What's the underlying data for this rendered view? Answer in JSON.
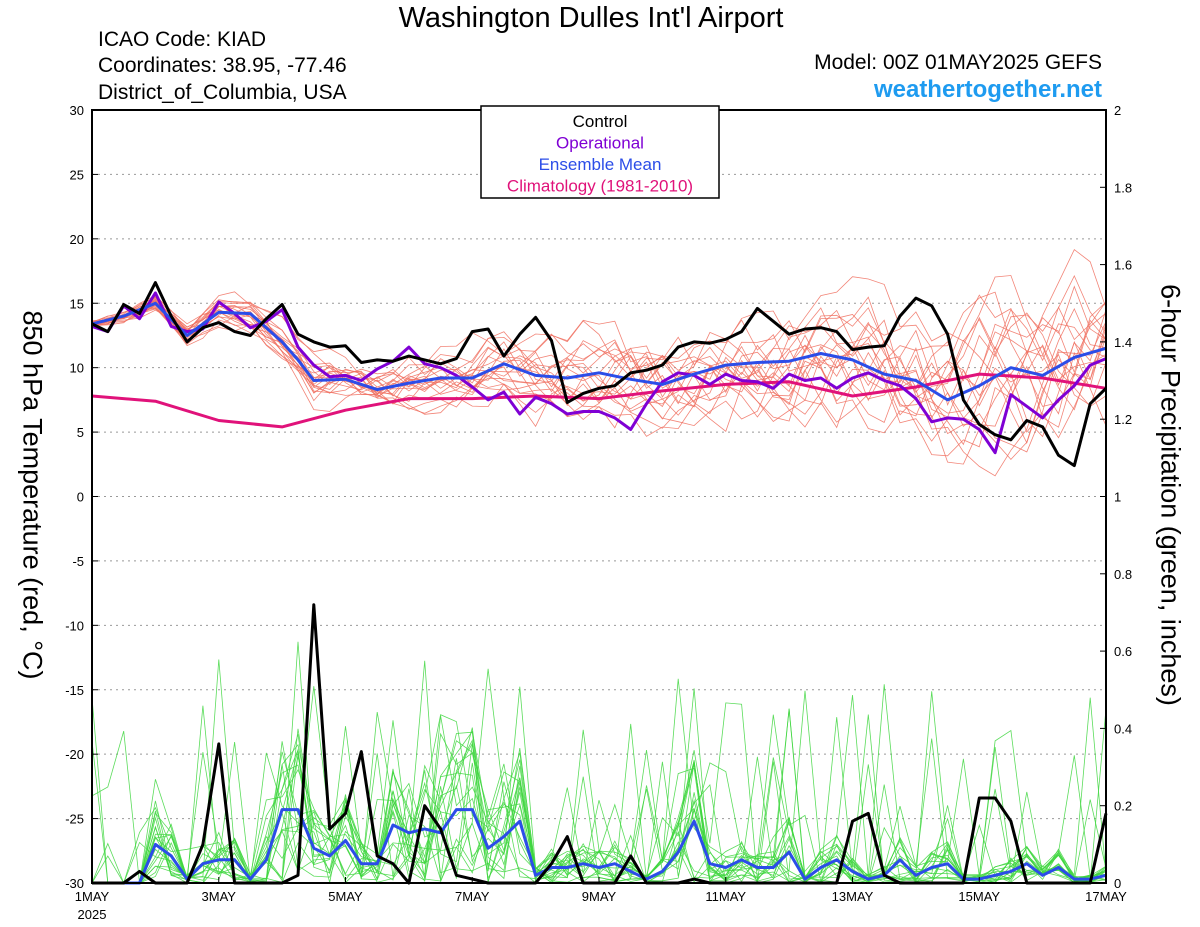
{
  "header": {
    "title": "Washington Dulles Int'l Airport",
    "icao": "ICAO Code: KIAD",
    "coords": "Coordinates: 38.95, -77.46",
    "region": "District_of_Columbia, USA",
    "model": "Model: 00Z 01MAY2025 GEFS",
    "site": "weathertogether.net"
  },
  "colors": {
    "control": "#000000",
    "operational": "#7f00d4",
    "mean": "#2b4de8",
    "climatology": "#e0127a",
    "members_temp": "#f07060",
    "members_precip": "#3ed63e"
  },
  "chart_data": {
    "type": "line",
    "xlabel": "",
    "ylabel_left": "850 hPa Temperature (red, °C)",
    "ylabel_right": "6-hour Precipitation (green, inches)",
    "x_unit": "days since 1MAY 00Z",
    "xlim": [
      0,
      16
    ],
    "ylim_left": [
      -30,
      30
    ],
    "ylim_right": [
      0,
      2
    ],
    "grid": "horizontal dotted",
    "yticks_left": [
      "30",
      "25",
      "20",
      "15",
      "10",
      "5",
      "0",
      "-5",
      "-10",
      "-15",
      "-20",
      "-25",
      "-30"
    ],
    "yticks_right": [
      "2",
      "1.8",
      "1.6",
      "1.4",
      "1.2",
      "1",
      "0.8",
      "0.6",
      "0.4",
      "0.2",
      "0"
    ],
    "xticks": [
      {
        "x": 0,
        "label": "1MAY"
      },
      {
        "x": 2,
        "label": "3MAY"
      },
      {
        "x": 4,
        "label": "5MAY"
      },
      {
        "x": 6,
        "label": "7MAY"
      },
      {
        "x": 8,
        "label": "9MAY"
      },
      {
        "x": 10,
        "label": "11MAY"
      },
      {
        "x": 12,
        "label": "13MAY"
      },
      {
        "x": 14,
        "label": "15MAY"
      },
      {
        "x": 16,
        "label": "17MAY"
      }
    ],
    "year_label": "2025",
    "legend": {
      "position": "top-center",
      "entries": [
        {
          "name": "Control",
          "color": "#000000"
        },
        {
          "name": "Operational",
          "color": "#7f00d4"
        },
        {
          "name": "Ensemble Mean",
          "color": "#2b4de8"
        },
        {
          "name": "Climatology (1981-2010)",
          "color": "#e0127a"
        }
      ]
    },
    "series": [
      {
        "name": "Climatology (1981-2010)",
        "axis": "left",
        "x": [
          0,
          1,
          2,
          3,
          4,
          5,
          6,
          7,
          8,
          9,
          10,
          11,
          12,
          13,
          14,
          15,
          16
        ],
        "values": [
          7.8,
          7.4,
          5.9,
          5.4,
          6.7,
          7.6,
          7.6,
          7.8,
          7.6,
          8.2,
          8.7,
          8.9,
          7.8,
          8.5,
          9.5,
          9.2,
          8.4
        ]
      },
      {
        "name": "Control",
        "axis": "left",
        "x": [
          0,
          0.25,
          0.5,
          0.75,
          1,
          1.25,
          1.5,
          1.75,
          2,
          2.25,
          2.5,
          2.75,
          3,
          3.25,
          3.5,
          3.75,
          4,
          4.25,
          4.5,
          4.75,
          5,
          5.25,
          5.5,
          5.75,
          6,
          6.25,
          6.5,
          6.75,
          7,
          7.25,
          7.5,
          7.75,
          8,
          8.25,
          8.5,
          8.75,
          9,
          9.25,
          9.5,
          9.75,
          10,
          10.25,
          10.5,
          10.75,
          11,
          11.25,
          11.5,
          11.75,
          12,
          12.25,
          12.5,
          12.75,
          13,
          13.25,
          13.5,
          13.75,
          14,
          14.25,
          14.5,
          14.75,
          15,
          15.25,
          15.5,
          15.75,
          16
        ],
        "values": [
          13.4,
          12.8,
          14.9,
          14.2,
          16.6,
          14.0,
          12.0,
          13.1,
          13.5,
          12.8,
          12.5,
          13.8,
          14.9,
          12.6,
          12.0,
          11.6,
          11.7,
          10.4,
          10.6,
          10.5,
          10.9,
          10.6,
          10.3,
          10.7,
          12.8,
          13.0,
          10.9,
          12.6,
          13.9,
          12.1,
          7.3,
          8.0,
          8.4,
          8.6,
          9.6,
          9.8,
          10.2,
          11.6,
          12.0,
          11.9,
          12.2,
          12.8,
          14.6,
          13.6,
          12.6,
          13.0,
          13.1,
          12.8,
          11.4,
          11.6,
          11.7,
          14.0,
          15.4,
          14.8,
          12.6,
          7.5,
          5.6,
          4.8,
          4.4,
          5.9,
          5.4,
          3.2,
          2.4,
          7.2,
          8.4
        ]
      },
      {
        "name": "Operational",
        "axis": "left",
        "x": [
          0,
          0.25,
          0.5,
          0.75,
          1,
          1.25,
          1.5,
          1.75,
          2,
          2.25,
          2.5,
          2.75,
          3,
          3.25,
          3.5,
          3.75,
          4,
          4.25,
          4.5,
          4.75,
          5,
          5.25,
          5.5,
          5.75,
          6,
          6.25,
          6.5,
          6.75,
          7,
          7.25,
          7.5,
          7.75,
          8,
          8.25,
          8.5,
          8.75,
          9,
          9.25,
          9.5,
          9.75,
          10,
          10.25,
          10.5,
          10.75,
          11,
          11.25,
          11.5,
          11.75,
          12,
          12.25,
          12.5,
          12.75,
          13,
          13.25,
          13.5,
          13.75,
          14,
          14.25,
          14.5,
          14.75,
          15,
          15.25,
          15.5,
          15.75,
          16
        ],
        "values": [
          13.2,
          12.8,
          14.8,
          13.8,
          15.8,
          13.2,
          12.8,
          13.0,
          15.1,
          14.2,
          13.1,
          13.6,
          14.5,
          11.6,
          10.2,
          9.3,
          9.4,
          9.0,
          9.9,
          10.5,
          11.6,
          10.3,
          10.0,
          9.4,
          8.5,
          7.5,
          8.1,
          6.4,
          7.7,
          7.2,
          6.4,
          6.6,
          6.6,
          6.1,
          5.2,
          7.2,
          8.9,
          9.6,
          9.4,
          8.7,
          9.5,
          9.0,
          8.9,
          8.4,
          9.5,
          9.0,
          9.2,
          8.4,
          9.2,
          9.6,
          9.0,
          8.6,
          7.6,
          5.8,
          6.1,
          6.0,
          5.2,
          3.4,
          7.9,
          7.0,
          6.1,
          7.5,
          8.6,
          10.2,
          10.7
        ]
      },
      {
        "name": "Ensemble Mean",
        "axis": "left",
        "x": [
          0,
          0.5,
          1,
          1.5,
          2,
          2.5,
          3,
          3.25,
          3.5,
          4,
          4.5,
          5,
          5.5,
          6,
          6.5,
          7,
          7.5,
          8,
          8.5,
          9,
          9.5,
          10,
          10.5,
          11,
          11.5,
          12,
          12.5,
          13,
          13.5,
          14,
          14.5,
          15,
          15.5,
          16
        ],
        "values": [
          13.4,
          14.0,
          15.0,
          12.5,
          14.3,
          14.2,
          12.0,
          10.6,
          9.0,
          9.1,
          8.3,
          8.8,
          9.2,
          9.2,
          10.3,
          9.4,
          9.2,
          9.6,
          9.1,
          8.7,
          9.5,
          10.2,
          10.4,
          10.5,
          11.1,
          10.6,
          9.5,
          9.0,
          7.5,
          8.6,
          10.0,
          9.4,
          10.8,
          11.5
        ]
      },
      {
        "name": "Control",
        "axis": "right",
        "x": [
          0,
          0.25,
          0.5,
          0.75,
          1,
          1.25,
          1.5,
          1.75,
          2,
          2.25,
          2.5,
          2.75,
          3,
          3.25,
          3.5,
          3.75,
          4,
          4.25,
          4.5,
          4.75,
          5,
          5.25,
          5.5,
          5.75,
          6,
          6.25,
          6.5,
          6.75,
          7,
          7.25,
          7.5,
          7.75,
          8,
          8.25,
          8.5,
          8.75,
          9,
          9.25,
          9.5,
          9.75,
          10,
          10.25,
          10.5,
          10.75,
          11,
          11.25,
          11.5,
          11.75,
          12,
          12.25,
          12.5,
          12.75,
          13,
          13.25,
          13.5,
          13.75,
          14,
          14.25,
          14.5,
          14.75,
          15,
          15.25,
          15.5,
          15.75,
          16
        ],
        "values": [
          0.0,
          0.0,
          0.0,
          0.03,
          0.0,
          0.0,
          0.0,
          0.1,
          0.36,
          0.0,
          0.0,
          0.0,
          0.0,
          0.02,
          0.72,
          0.14,
          0.18,
          0.34,
          0.07,
          0.05,
          0.0,
          0.2,
          0.14,
          0.02,
          0.01,
          0.0,
          0.0,
          0.0,
          0.0,
          0.05,
          0.12,
          0.0,
          0.0,
          0.0,
          0.07,
          0.0,
          0.0,
          0.0,
          0.01,
          0.0,
          0.0,
          0.0,
          0.0,
          0.0,
          0.0,
          0.0,
          0.0,
          0.0,
          0.16,
          0.18,
          0.02,
          0.0,
          0.0,
          0.0,
          0.0,
          0.0,
          0.22,
          0.22,
          0.16,
          0.0,
          0.0,
          0.0,
          0.0,
          0.0,
          0.18
        ]
      },
      {
        "name": "Ensemble Mean",
        "axis": "right",
        "x": [
          0,
          0.25,
          0.5,
          0.75,
          1,
          1.25,
          1.5,
          1.75,
          2,
          2.25,
          2.5,
          2.75,
          3,
          3.25,
          3.5,
          3.75,
          4,
          4.25,
          4.5,
          4.75,
          5,
          5.25,
          5.5,
          5.75,
          6,
          6.25,
          6.5,
          6.75,
          7,
          7.25,
          7.5,
          7.75,
          8,
          8.25,
          8.5,
          8.75,
          9,
          9.25,
          9.5,
          9.75,
          10,
          10.25,
          10.5,
          10.75,
          11,
          11.25,
          11.5,
          11.75,
          12,
          12.25,
          12.5,
          12.75,
          13,
          13.25,
          13.5,
          13.75,
          14,
          14.25,
          14.5,
          14.75,
          15,
          15.25,
          15.5,
          15.75,
          16
        ],
        "values": [
          0.0,
          0.0,
          0.0,
          0.0,
          0.1,
          0.07,
          0.01,
          0.05,
          0.06,
          0.06,
          0.01,
          0.06,
          0.19,
          0.19,
          0.09,
          0.07,
          0.11,
          0.05,
          0.05,
          0.15,
          0.13,
          0.14,
          0.13,
          0.19,
          0.19,
          0.09,
          0.12,
          0.16,
          0.02,
          0.04,
          0.04,
          0.05,
          0.04,
          0.05,
          0.03,
          0.01,
          0.03,
          0.08,
          0.16,
          0.05,
          0.04,
          0.06,
          0.04,
          0.04,
          0.08,
          0.01,
          0.04,
          0.06,
          0.03,
          0.01,
          0.02,
          0.06,
          0.02,
          0.04,
          0.05,
          0.01,
          0.01,
          0.02,
          0.03,
          0.05,
          0.02,
          0.04,
          0.01,
          0.01,
          0.02
        ]
      }
    ]
  }
}
